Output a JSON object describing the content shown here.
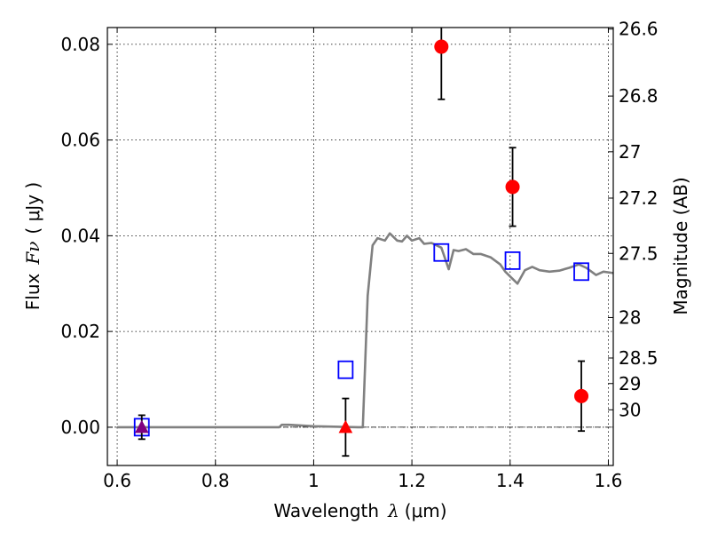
{
  "chart_data": {
    "type": "scatter",
    "xlabel_prefix": "Wavelength",
    "xlabel_symbol": "λ",
    "xlabel_unit": "(μm)",
    "ylabel_prefix": "Flux",
    "ylabel_symbol": "Fν",
    "ylabel_unit": "( μJy )",
    "y2label": "Magnitude (AB)",
    "xlim": [
      0.58,
      1.61
    ],
    "ylim": [
      -0.008,
      0.0835
    ],
    "grid": true,
    "x_ticks": [
      {
        "value": 0.6,
        "label": "0.6"
      },
      {
        "value": 0.8,
        "label": "0.8"
      },
      {
        "value": 1.0,
        "label": "1"
      },
      {
        "value": 1.2,
        "label": "1.2"
      },
      {
        "value": 1.4,
        "label": "1.4"
      },
      {
        "value": 1.6,
        "label": "1.6"
      }
    ],
    "y_ticks": [
      {
        "value": 0.0,
        "label": "0.00"
      },
      {
        "value": 0.02,
        "label": "0.02"
      },
      {
        "value": 0.04,
        "label": "0.04"
      },
      {
        "value": 0.06,
        "label": "0.06"
      },
      {
        "value": 0.08,
        "label": "0.08"
      }
    ],
    "y2_ticks": [
      {
        "mag": 26.6,
        "label": "26.6"
      },
      {
        "mag": 26.8,
        "label": "26.8"
      },
      {
        "mag": 27.0,
        "label": "27"
      },
      {
        "mag": 27.2,
        "label": "27.2"
      },
      {
        "mag": 27.5,
        "label": "27.5"
      },
      {
        "mag": 28.0,
        "label": "28"
      },
      {
        "mag": 28.5,
        "label": "28.5"
      },
      {
        "mag": 29.0,
        "label": "29"
      },
      {
        "mag": 30.0,
        "label": "30"
      }
    ],
    "sed_model": {
      "color": "#808080",
      "points": [
        [
          0.6,
          0.0
        ],
        [
          0.93,
          0.0
        ],
        [
          0.935,
          0.0005
        ],
        [
          0.95,
          0.0005
        ],
        [
          1.0,
          0.0002
        ],
        [
          1.09,
          0.0
        ],
        [
          1.1,
          0.0
        ],
        [
          1.11,
          0.0275
        ],
        [
          1.12,
          0.038
        ],
        [
          1.13,
          0.0395
        ],
        [
          1.145,
          0.039
        ],
        [
          1.155,
          0.0405
        ],
        [
          1.17,
          0.039
        ],
        [
          1.18,
          0.0388
        ],
        [
          1.19,
          0.04
        ],
        [
          1.2,
          0.039
        ],
        [
          1.215,
          0.0395
        ],
        [
          1.225,
          0.0383
        ],
        [
          1.24,
          0.0385
        ],
        [
          1.26,
          0.0375
        ],
        [
          1.275,
          0.033
        ],
        [
          1.285,
          0.037
        ],
        [
          1.295,
          0.0368
        ],
        [
          1.31,
          0.0372
        ],
        [
          1.325,
          0.0362
        ],
        [
          1.34,
          0.0362
        ],
        [
          1.36,
          0.0355
        ],
        [
          1.38,
          0.034
        ],
        [
          1.39,
          0.0325
        ],
        [
          1.405,
          0.031
        ],
        [
          1.415,
          0.03
        ],
        [
          1.43,
          0.0328
        ],
        [
          1.445,
          0.0335
        ],
        [
          1.46,
          0.0328
        ],
        [
          1.48,
          0.0325
        ],
        [
          1.5,
          0.0327
        ],
        [
          1.52,
          0.0333
        ],
        [
          1.54,
          0.034
        ],
        [
          1.555,
          0.0333
        ],
        [
          1.575,
          0.0318
        ],
        [
          1.59,
          0.0325
        ],
        [
          1.61,
          0.0322
        ]
      ]
    },
    "model_photometry": {
      "color": "#0000ff",
      "points": [
        [
          0.65,
          0.0
        ],
        [
          1.065,
          0.012
        ],
        [
          1.26,
          0.0365
        ],
        [
          1.405,
          0.0348
        ],
        [
          1.545,
          0.0325
        ]
      ]
    },
    "detections": {
      "color": "#ff0000",
      "points": [
        {
          "x": 1.26,
          "y": 0.0795,
          "err": 0.011
        },
        {
          "x": 1.405,
          "y": 0.0502,
          "err": 0.0082
        },
        {
          "x": 1.545,
          "y": 0.0065,
          "err": 0.0073
        }
      ]
    },
    "upper_limits": {
      "points": [
        {
          "x": 0.65,
          "y": 0.0,
          "err": 0.0025,
          "color": "#800080"
        },
        {
          "x": 1.065,
          "y": 0.0,
          "err": 0.006,
          "color": "#ff0000"
        }
      ]
    }
  }
}
